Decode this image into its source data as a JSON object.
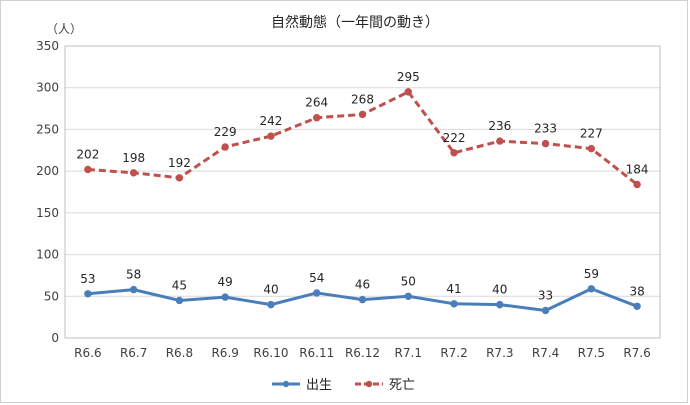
{
  "chart_data": {
    "type": "line",
    "title": "自然動態（一年間の動き）",
    "ylabel": "（人）",
    "xlabel": "",
    "ylim": [
      0,
      350
    ],
    "yticks": [
      0,
      50,
      100,
      150,
      200,
      250,
      300,
      350
    ],
    "grid": true,
    "legend": "bottom",
    "categories": [
      "R6.6",
      "R6.7",
      "R6.8",
      "R6.9",
      "R6.10",
      "R6.11",
      "R6.12",
      "R7.1",
      "R7.2",
      "R7.3",
      "R7.4",
      "R7.5",
      "R7.6"
    ],
    "series": [
      {
        "name": "出生",
        "color": "#4a7ebb",
        "style": "solid",
        "marker": "circle",
        "values": [
          53,
          58,
          45,
          49,
          40,
          54,
          46,
          50,
          41,
          40,
          33,
          59,
          38
        ]
      },
      {
        "name": "死亡",
        "color": "#c0504d",
        "style": "dashed",
        "marker": "circle",
        "values": [
          202,
          198,
          192,
          229,
          242,
          264,
          268,
          295,
          222,
          236,
          233,
          227,
          184
        ]
      }
    ]
  }
}
